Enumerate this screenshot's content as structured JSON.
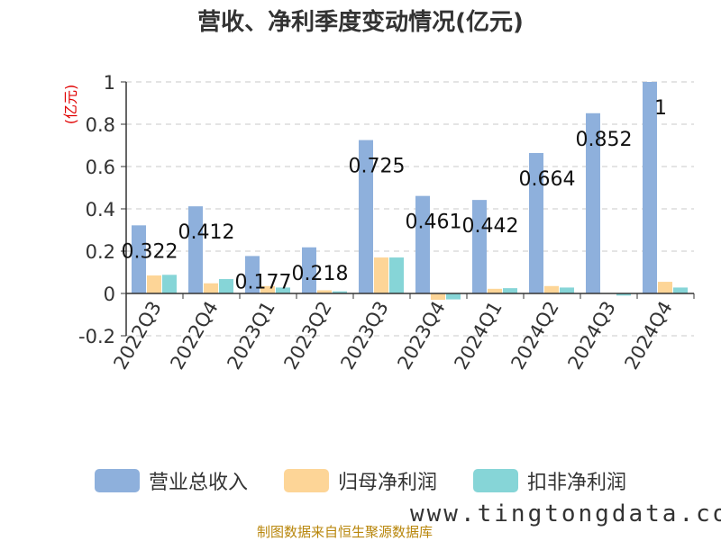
{
  "chart_data": {
    "type": "bar",
    "title": "营收、净利季度变动情况(亿元)",
    "ylabel": "(亿元)",
    "ylim": [
      -0.2,
      1
    ],
    "yticks": [
      "-0.2",
      "0",
      "0.2",
      "0.4",
      "0.6",
      "0.8",
      "1"
    ],
    "grid": true,
    "legend_position": "bottom",
    "categories": [
      "2022Q3",
      "2022Q4",
      "2023Q1",
      "2023Q2",
      "2023Q3",
      "2023Q4",
      "2024Q1",
      "2024Q2",
      "2024Q3",
      "2024Q4"
    ],
    "series": [
      {
        "name": "营业总收入",
        "color": "#8eb0dc",
        "values": [
          0.322,
          0.412,
          0.177,
          0.218,
          0.725,
          0.461,
          0.442,
          0.664,
          0.852,
          1.0
        ],
        "labels": [
          "0.322",
          "0.412",
          "0.177",
          "0.218",
          "0.725",
          "0.461",
          "0.442",
          "0.664",
          "0.852",
          "1"
        ]
      },
      {
        "name": "归母净利润",
        "color": "#fdd597",
        "values": [
          0.085,
          0.048,
          0.035,
          0.015,
          0.17,
          -0.03,
          0.022,
          0.035,
          0.002,
          0.055
        ]
      },
      {
        "name": "扣非净利润",
        "color": "#86d5d7",
        "values": [
          0.088,
          0.068,
          0.028,
          0.01,
          0.17,
          -0.028,
          0.025,
          0.028,
          -0.01,
          0.028
        ]
      }
    ]
  },
  "source_note": "制图数据来自恒生聚源数据库",
  "watermark": "www.tingtongdata.com"
}
